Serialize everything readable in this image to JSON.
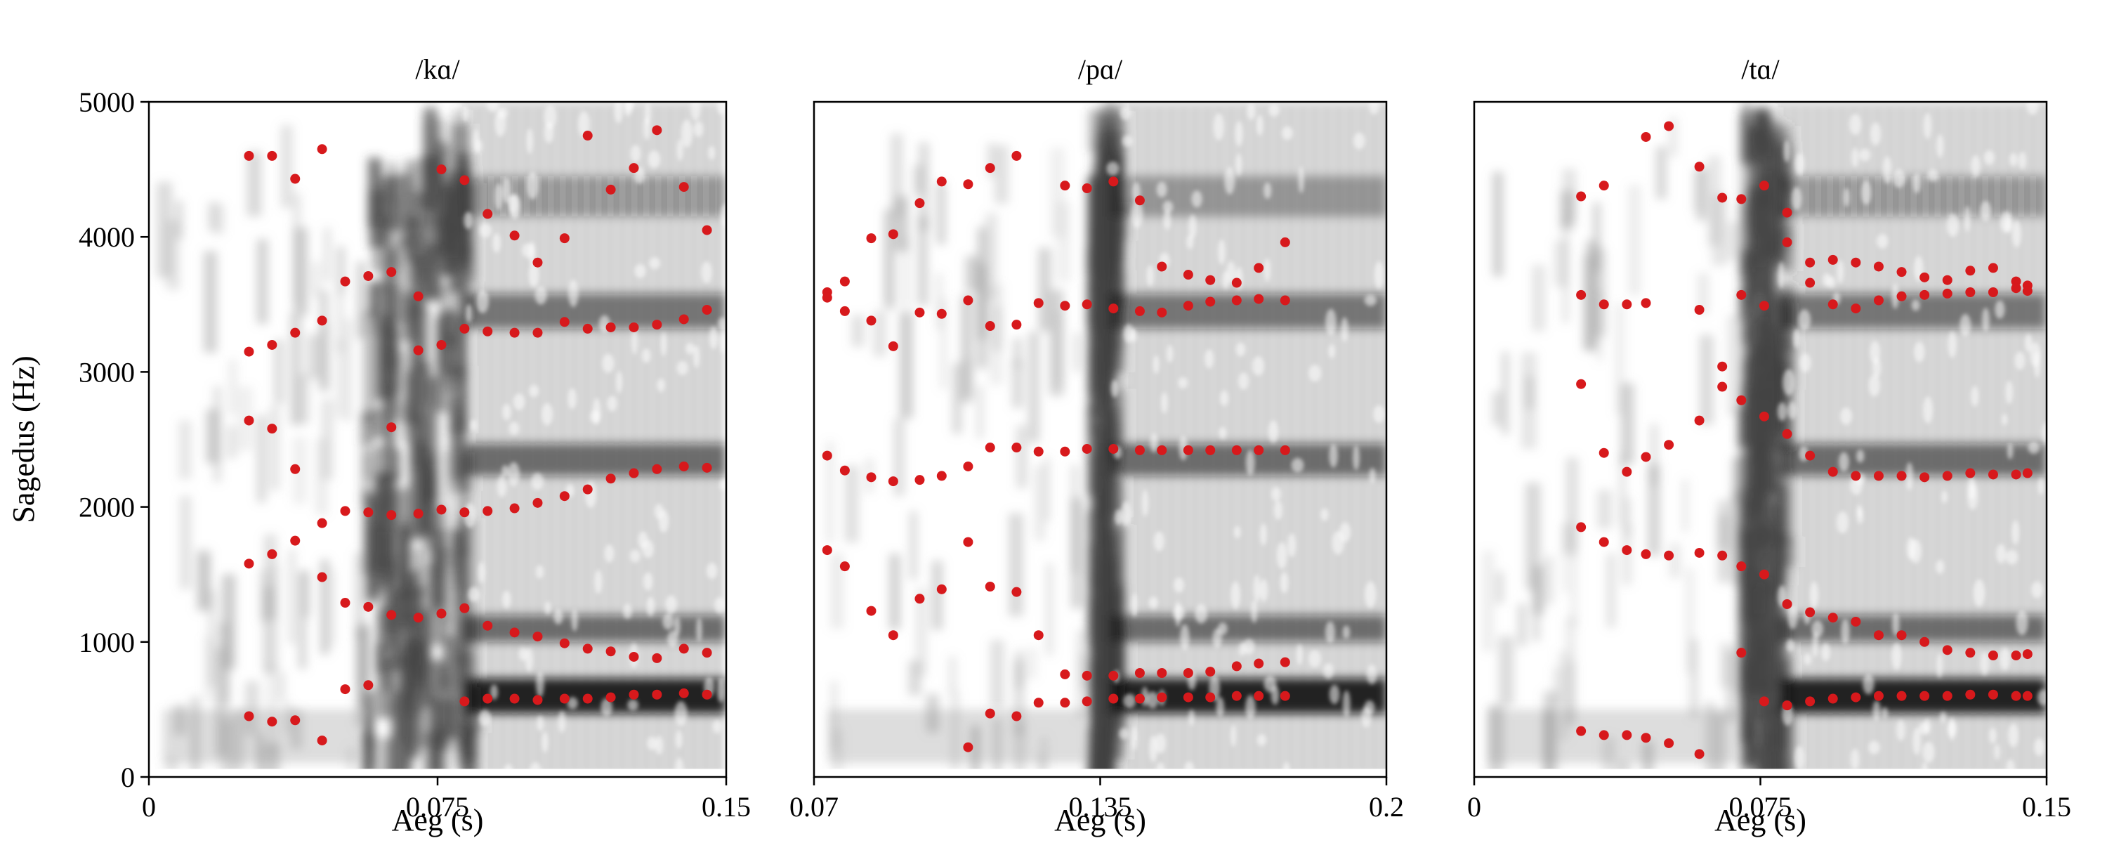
{
  "chart_data": {
    "type": "scatter",
    "ylabel": "Sagedus (Hz)",
    "ylim": [
      0,
      5000
    ],
    "y_ticks": [
      0,
      1000,
      2000,
      3000,
      4000,
      5000
    ],
    "y_tick_labels": [
      "0",
      "1000",
      "2000",
      "3000",
      "4000",
      "5000"
    ],
    "background": "grayscale spectrogram",
    "point_color": "#d7191c",
    "panels": [
      {
        "title": "/kɑ/",
        "xlabel": "Aeg (s)",
        "xlim": [
          0,
          0.15
        ],
        "x_ticks": [
          0,
          0.075,
          0.15
        ],
        "x_tick_labels": [
          "0",
          "0.075",
          "0.15"
        ],
        "frication_onset": 0.055,
        "voicing_onset": 0.082,
        "points": [
          [
            0.026,
            4600
          ],
          [
            0.032,
            4600
          ],
          [
            0.038,
            4430
          ],
          [
            0.045,
            4650
          ],
          [
            0.076,
            4500
          ],
          [
            0.082,
            4420
          ],
          [
            0.088,
            4170
          ],
          [
            0.095,
            4010
          ],
          [
            0.101,
            3810
          ],
          [
            0.108,
            3990
          ],
          [
            0.114,
            4750
          ],
          [
            0.12,
            4350
          ],
          [
            0.126,
            4510
          ],
          [
            0.132,
            4790
          ],
          [
            0.139,
            4370
          ],
          [
            0.145,
            4050
          ],
          [
            0.026,
            3150
          ],
          [
            0.032,
            3200
          ],
          [
            0.038,
            3290
          ],
          [
            0.045,
            3380
          ],
          [
            0.051,
            3670
          ],
          [
            0.057,
            3710
          ],
          [
            0.063,
            3740
          ],
          [
            0.07,
            3560
          ],
          [
            0.07,
            3160
          ],
          [
            0.076,
            3200
          ],
          [
            0.082,
            3320
          ],
          [
            0.088,
            3300
          ],
          [
            0.095,
            3290
          ],
          [
            0.101,
            3290
          ],
          [
            0.108,
            3370
          ],
          [
            0.114,
            3320
          ],
          [
            0.12,
            3330
          ],
          [
            0.126,
            3330
          ],
          [
            0.132,
            3350
          ],
          [
            0.139,
            3390
          ],
          [
            0.145,
            3460
          ],
          [
            0.026,
            2640
          ],
          [
            0.032,
            2580
          ],
          [
            0.038,
            2280
          ],
          [
            0.045,
            1880
          ],
          [
            0.051,
            1970
          ],
          [
            0.057,
            1960
          ],
          [
            0.063,
            1940
          ],
          [
            0.07,
            1950
          ],
          [
            0.076,
            1980
          ],
          [
            0.082,
            1960
          ],
          [
            0.088,
            1970
          ],
          [
            0.095,
            1990
          ],
          [
            0.101,
            2030
          ],
          [
            0.108,
            2080
          ],
          [
            0.114,
            2130
          ],
          [
            0.12,
            2210
          ],
          [
            0.126,
            2250
          ],
          [
            0.132,
            2280
          ],
          [
            0.139,
            2300
          ],
          [
            0.145,
            2290
          ],
          [
            0.063,
            2590
          ],
          [
            0.026,
            1580
          ],
          [
            0.032,
            1650
          ],
          [
            0.038,
            1750
          ],
          [
            0.045,
            1480
          ],
          [
            0.051,
            1290
          ],
          [
            0.057,
            1260
          ],
          [
            0.063,
            1200
          ],
          [
            0.07,
            1180
          ],
          [
            0.076,
            1210
          ],
          [
            0.082,
            1250
          ],
          [
            0.088,
            1120
          ],
          [
            0.095,
            1070
          ],
          [
            0.101,
            1040
          ],
          [
            0.108,
            990
          ],
          [
            0.114,
            950
          ],
          [
            0.12,
            930
          ],
          [
            0.126,
            890
          ],
          [
            0.132,
            880
          ],
          [
            0.139,
            950
          ],
          [
            0.145,
            920
          ],
          [
            0.026,
            450
          ],
          [
            0.032,
            410
          ],
          [
            0.038,
            420
          ],
          [
            0.045,
            270
          ],
          [
            0.051,
            650
          ],
          [
            0.057,
            680
          ],
          [
            0.082,
            560
          ],
          [
            0.088,
            580
          ],
          [
            0.095,
            580
          ],
          [
            0.101,
            570
          ],
          [
            0.108,
            580
          ],
          [
            0.114,
            580
          ],
          [
            0.12,
            590
          ],
          [
            0.126,
            610
          ],
          [
            0.132,
            610
          ],
          [
            0.139,
            620
          ],
          [
            0.145,
            610
          ]
        ]
      },
      {
        "title": "/pɑ/",
        "xlabel": "Aeg (s)",
        "xlim": [
          0.07,
          0.2
        ],
        "x_ticks": [
          0.07,
          0.135,
          0.2
        ],
        "x_tick_labels": [
          "0.07",
          "0.135",
          "0.2"
        ],
        "frication_onset": 0.132,
        "voicing_onset": 0.137,
        "points": [
          [
            0.073,
            3590
          ],
          [
            0.073,
            3550
          ],
          [
            0.077,
            3670
          ],
          [
            0.083,
            3990
          ],
          [
            0.088,
            4020
          ],
          [
            0.094,
            4250
          ],
          [
            0.099,
            4410
          ],
          [
            0.105,
            4390
          ],
          [
            0.11,
            4510
          ],
          [
            0.116,
            4600
          ],
          [
            0.077,
            3450
          ],
          [
            0.083,
            3380
          ],
          [
            0.088,
            3190
          ],
          [
            0.094,
            3440
          ],
          [
            0.099,
            3430
          ],
          [
            0.105,
            3530
          ],
          [
            0.11,
            3340
          ],
          [
            0.116,
            3350
          ],
          [
            0.073,
            2380
          ],
          [
            0.077,
            2270
          ],
          [
            0.083,
            2220
          ],
          [
            0.088,
            2190
          ],
          [
            0.094,
            2200
          ],
          [
            0.099,
            2230
          ],
          [
            0.105,
            2300
          ],
          [
            0.11,
            2440
          ],
          [
            0.116,
            2440
          ],
          [
            0.073,
            1680
          ],
          [
            0.077,
            1560
          ],
          [
            0.083,
            1230
          ],
          [
            0.088,
            1050
          ],
          [
            0.094,
            1320
          ],
          [
            0.099,
            1390
          ],
          [
            0.105,
            1740
          ],
          [
            0.11,
            1410
          ],
          [
            0.116,
            1370
          ],
          [
            0.105,
            220
          ],
          [
            0.11,
            470
          ],
          [
            0.116,
            450
          ],
          [
            0.121,
            1050
          ],
          [
            0.121,
            3510
          ],
          [
            0.127,
            3490
          ],
          [
            0.132,
            3500
          ],
          [
            0.138,
            3470
          ],
          [
            0.144,
            3450
          ],
          [
            0.149,
            3440
          ],
          [
            0.155,
            3490
          ],
          [
            0.16,
            3520
          ],
          [
            0.166,
            3530
          ],
          [
            0.171,
            3540
          ],
          [
            0.177,
            3530
          ],
          [
            0.127,
            4380
          ],
          [
            0.132,
            4360
          ],
          [
            0.138,
            4410
          ],
          [
            0.144,
            4270
          ],
          [
            0.149,
            3780
          ],
          [
            0.155,
            3720
          ],
          [
            0.16,
            3680
          ],
          [
            0.166,
            3660
          ],
          [
            0.171,
            3770
          ],
          [
            0.177,
            3960
          ],
          [
            0.121,
            2410
          ],
          [
            0.127,
            2410
          ],
          [
            0.132,
            2430
          ],
          [
            0.138,
            2430
          ],
          [
            0.144,
            2420
          ],
          [
            0.149,
            2420
          ],
          [
            0.155,
            2420
          ],
          [
            0.16,
            2420
          ],
          [
            0.166,
            2420
          ],
          [
            0.171,
            2420
          ],
          [
            0.177,
            2420
          ],
          [
            0.127,
            760
          ],
          [
            0.132,
            750
          ],
          [
            0.138,
            750
          ],
          [
            0.144,
            770
          ],
          [
            0.149,
            770
          ],
          [
            0.155,
            770
          ],
          [
            0.16,
            780
          ],
          [
            0.166,
            820
          ],
          [
            0.171,
            840
          ],
          [
            0.177,
            850
          ],
          [
            0.121,
            550
          ],
          [
            0.127,
            550
          ],
          [
            0.132,
            560
          ],
          [
            0.138,
            580
          ],
          [
            0.144,
            580
          ],
          [
            0.149,
            590
          ],
          [
            0.155,
            590
          ],
          [
            0.16,
            590
          ],
          [
            0.166,
            600
          ],
          [
            0.171,
            600
          ],
          [
            0.177,
            600
          ]
        ]
      },
      {
        "title": "/tɑ/",
        "xlabel": "Aeg (s)",
        "xlim": [
          0,
          0.15
        ],
        "x_ticks": [
          0,
          0.075,
          0.15
        ],
        "x_tick_labels": [
          "0",
          "0.075",
          "0.15"
        ],
        "frication_onset": 0.069,
        "voicing_onset": 0.08,
        "points": [
          [
            0.028,
            4300
          ],
          [
            0.034,
            4380
          ],
          [
            0.045,
            4740
          ],
          [
            0.051,
            4820
          ],
          [
            0.059,
            4520
          ],
          [
            0.065,
            4290
          ],
          [
            0.028,
            3570
          ],
          [
            0.034,
            3500
          ],
          [
            0.04,
            3500
          ],
          [
            0.045,
            3510
          ],
          [
            0.059,
            3460
          ],
          [
            0.028,
            2910
          ],
          [
            0.034,
            2400
          ],
          [
            0.04,
            2260
          ],
          [
            0.045,
            2370
          ],
          [
            0.051,
            2460
          ],
          [
            0.059,
            2640
          ],
          [
            0.065,
            2890
          ],
          [
            0.065,
            3040
          ],
          [
            0.028,
            1850
          ],
          [
            0.034,
            1740
          ],
          [
            0.04,
            1680
          ],
          [
            0.045,
            1650
          ],
          [
            0.051,
            1640
          ],
          [
            0.059,
            1660
          ],
          [
            0.065,
            1640
          ],
          [
            0.028,
            340
          ],
          [
            0.034,
            310
          ],
          [
            0.04,
            310
          ],
          [
            0.045,
            290
          ],
          [
            0.051,
            250
          ],
          [
            0.059,
            170
          ],
          [
            0.07,
            4280
          ],
          [
            0.076,
            4380
          ],
          [
            0.07,
            3570
          ],
          [
            0.076,
            3490
          ],
          [
            0.07,
            2790
          ],
          [
            0.076,
            2670
          ],
          [
            0.07,
            1560
          ],
          [
            0.076,
            1500
          ],
          [
            0.07,
            920
          ],
          [
            0.076,
            560
          ],
          [
            0.082,
            4180
          ],
          [
            0.082,
            3960
          ],
          [
            0.088,
            3810
          ],
          [
            0.088,
            3660
          ],
          [
            0.094,
            3830
          ],
          [
            0.094,
            3500
          ],
          [
            0.1,
            3810
          ],
          [
            0.1,
            3470
          ],
          [
            0.106,
            3780
          ],
          [
            0.106,
            3530
          ],
          [
            0.112,
            3740
          ],
          [
            0.112,
            3560
          ],
          [
            0.118,
            3700
          ],
          [
            0.118,
            3570
          ],
          [
            0.124,
            3680
          ],
          [
            0.124,
            3580
          ],
          [
            0.13,
            3750
          ],
          [
            0.13,
            3590
          ],
          [
            0.136,
            3770
          ],
          [
            0.136,
            3590
          ],
          [
            0.142,
            3670
          ],
          [
            0.142,
            3620
          ],
          [
            0.145,
            3640
          ],
          [
            0.145,
            3600
          ],
          [
            0.082,
            2540
          ],
          [
            0.088,
            2380
          ],
          [
            0.094,
            2260
          ],
          [
            0.1,
            2230
          ],
          [
            0.106,
            2230
          ],
          [
            0.112,
            2230
          ],
          [
            0.118,
            2220
          ],
          [
            0.124,
            2230
          ],
          [
            0.13,
            2250
          ],
          [
            0.136,
            2240
          ],
          [
            0.142,
            2240
          ],
          [
            0.145,
            2250
          ],
          [
            0.082,
            1280
          ],
          [
            0.088,
            1220
          ],
          [
            0.094,
            1180
          ],
          [
            0.1,
            1150
          ],
          [
            0.106,
            1050
          ],
          [
            0.112,
            1050
          ],
          [
            0.118,
            1000
          ],
          [
            0.124,
            940
          ],
          [
            0.13,
            920
          ],
          [
            0.136,
            900
          ],
          [
            0.142,
            900
          ],
          [
            0.145,
            910
          ],
          [
            0.082,
            530
          ],
          [
            0.088,
            560
          ],
          [
            0.094,
            580
          ],
          [
            0.1,
            590
          ],
          [
            0.106,
            600
          ],
          [
            0.112,
            600
          ],
          [
            0.118,
            600
          ],
          [
            0.124,
            600
          ],
          [
            0.13,
            610
          ],
          [
            0.136,
            610
          ],
          [
            0.142,
            600
          ],
          [
            0.145,
            600
          ]
        ]
      }
    ]
  }
}
